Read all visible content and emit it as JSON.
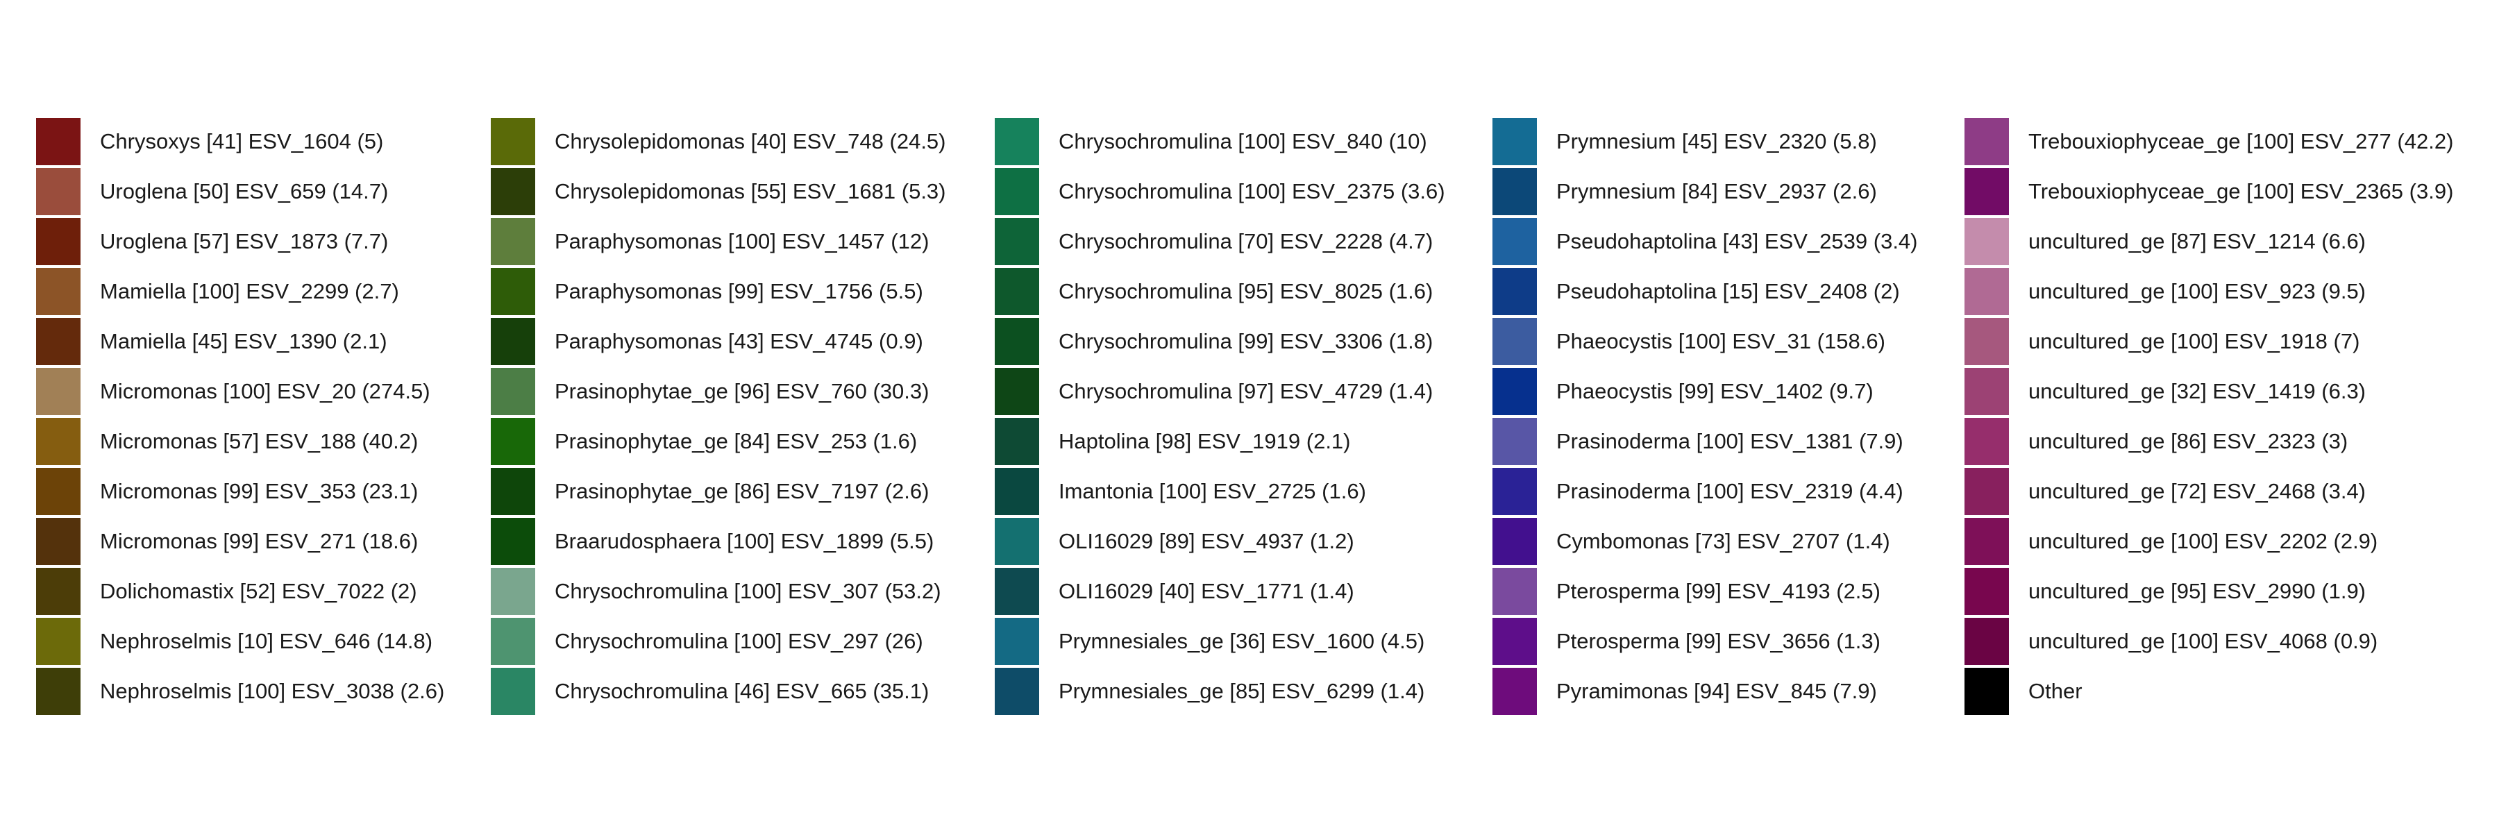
{
  "chart_data": {
    "type": "legend",
    "columns": [
      [
        {
          "label": "Chrysoxys [41] ESV_1604 (5)",
          "color": "#7B1414"
        },
        {
          "label": "Uroglena [50] ESV_659 (14.7)",
          "color": "#9A4D3C"
        },
        {
          "label": "Uroglena [57] ESV_1873 (7.7)",
          "color": "#6E1F0A"
        },
        {
          "label": "Mamiella [100] ESV_2299 (2.7)",
          "color": "#8C5427"
        },
        {
          "label": "Mamiella [45] ESV_1390 (2.1)",
          "color": "#642A0C"
        },
        {
          "label": "Micromonas [100] ESV_20 (274.5)",
          "color": "#A18056"
        },
        {
          "label": "Micromonas [57] ESV_188 (40.2)",
          "color": "#855D10"
        },
        {
          "label": "Micromonas [99] ESV_353 (23.1)",
          "color": "#6C4308"
        },
        {
          "label": "Micromonas [99] ESV_271 (18.6)",
          "color": "#54320C"
        },
        {
          "label": "Dolichomastix [52] ESV_7022 (2)",
          "color": "#4C3D08"
        },
        {
          "label": "Nephroselmis [10] ESV_646 (14.8)",
          "color": "#6C6A0A"
        },
        {
          "label": "Nephroselmis [100] ESV_3038 (2.6)",
          "color": "#3E3E08"
        }
      ],
      [
        {
          "label": "Chrysolepidomonas [40] ESV_748 (24.5)",
          "color": "#5A6A08"
        },
        {
          "label": "Chrysolepidomonas [55] ESV_1681 (5.3)",
          "color": "#2C3E08"
        },
        {
          "label": "Paraphysomonas [100] ESV_1457 (12)",
          "color": "#5E7E3C"
        },
        {
          "label": "Paraphysomonas [99] ESV_1756 (5.5)",
          "color": "#2E5C08"
        },
        {
          "label": "Paraphysomonas [43] ESV_4745 (0.9)",
          "color": "#16400A"
        },
        {
          "label": "Prasinophytae_ge [96] ESV_760 (30.3)",
          "color": "#4C7E46"
        },
        {
          "label": "Prasinophytae_ge [84] ESV_253 (1.6)",
          "color": "#186808"
        },
        {
          "label": "Prasinophytae_ge [86] ESV_7197 (2.6)",
          "color": "#0E460A"
        },
        {
          "label": "Braarudosphaera [100] ESV_1899 (5.5)",
          "color": "#0C4C0A"
        },
        {
          "label": "Chrysochromulina [100] ESV_307 (53.2)",
          "color": "#7AA68E"
        },
        {
          "label": "Chrysochromulina [100] ESV_297 (26)",
          "color": "#4E9470"
        },
        {
          "label": "Chrysochromulina [46] ESV_665 (35.1)",
          "color": "#2A8664"
        }
      ],
      [
        {
          "label": "Chrysochromulina [100] ESV_840 (10)",
          "color": "#16825C"
        },
        {
          "label": "Chrysochromulina [100] ESV_2375 (3.6)",
          "color": "#0E7044"
        },
        {
          "label": "Chrysochromulina [70] ESV_2228 (4.7)",
          "color": "#0E6438"
        },
        {
          "label": "Chrysochromulina [95] ESV_8025 (1.6)",
          "color": "#0E582C"
        },
        {
          "label": "Chrysochromulina [99] ESV_3306 (1.8)",
          "color": "#0C5020"
        },
        {
          "label": "Chrysochromulina [97] ESV_4729 (1.4)",
          "color": "#0E4616"
        },
        {
          "label": "Haptolina [98] ESV_1919 (2.1)",
          "color": "#0E4A34"
        },
        {
          "label": "Imantonia [100] ESV_2725 (1.6)",
          "color": "#0A4840"
        },
        {
          "label": "OLI16029 [89] ESV_4937 (1.2)",
          "color": "#147070"
        },
        {
          "label": "OLI16029 [40] ESV_1771 (1.4)",
          "color": "#0E4A50"
        },
        {
          "label": "Prymnesiales_ge [36] ESV_1600 (4.5)",
          "color": "#146A84"
        },
        {
          "label": "Prymnesiales_ge [85] ESV_6299 (1.4)",
          "color": "#0E4C68"
        }
      ],
      [
        {
          "label": "Prymnesium [45] ESV_2320 (5.8)",
          "color": "#146C94"
        },
        {
          "label": "Prymnesium [84] ESV_2937 (2.6)",
          "color": "#0C4878"
        },
        {
          "label": "Pseudohaptolina [43] ESV_2539 (3.4)",
          "color": "#1E62A0"
        },
        {
          "label": "Pseudohaptolina [15] ESV_2408 (2)",
          "color": "#0E3C88"
        },
        {
          "label": "Phaeocystis [100] ESV_31 (158.6)",
          "color": "#3C5CA0"
        },
        {
          "label": "Phaeocystis [99] ESV_1402 (9.7)",
          "color": "#06308E"
        },
        {
          "label": "Prasinoderma [100] ESV_1381 (7.9)",
          "color": "#5856A6"
        },
        {
          "label": "Prasinoderma [100] ESV_2319 (4.4)",
          "color": "#2A2296"
        },
        {
          "label": "Cymbomonas [73] ESV_2707 (1.4)",
          "color": "#42108E"
        },
        {
          "label": "Pterosperma [99] ESV_4193 (2.5)",
          "color": "#7A4A9E"
        },
        {
          "label": "Pterosperma [99] ESV_3656 (1.3)",
          "color": "#5E0E8A"
        },
        {
          "label": "Pyramimonas [94] ESV_845 (7.9)",
          "color": "#6E0C7C"
        }
      ],
      [
        {
          "label": "Trebouxiophyceae_ge [100] ESV_277 (42.2)",
          "color": "#8E3C86"
        },
        {
          "label": "Trebouxiophyceae_ge [100] ESV_2365 (3.9)",
          "color": "#720C66"
        },
        {
          "label": "uncultured_ge [87] ESV_1214 (6.6)",
          "color": "#C48CAC"
        },
        {
          "label": "uncultured_ge [100] ESV_923 (9.5)",
          "color": "#B06A94"
        },
        {
          "label": "uncultured_ge [100] ESV_1918 (7)",
          "color": "#A6587E"
        },
        {
          "label": "uncultured_ge [32] ESV_1419 (6.3)",
          "color": "#9C4274"
        },
        {
          "label": "uncultured_ge [86] ESV_2323 (3)",
          "color": "#962E6C"
        },
        {
          "label": "uncultured_ge [72] ESV_2468 (3.4)",
          "color": "#88205E"
        },
        {
          "label": "uncultured_ge [100] ESV_2202 (2.9)",
          "color": "#7E1058"
        },
        {
          "label": "uncultured_ge [95] ESV_2990 (1.9)",
          "color": "#78064E"
        },
        {
          "label": "uncultured_ge [100] ESV_4068 (0.9)",
          "color": "#6A0444"
        },
        {
          "label": "Other",
          "color": "#000000"
        }
      ]
    ]
  }
}
